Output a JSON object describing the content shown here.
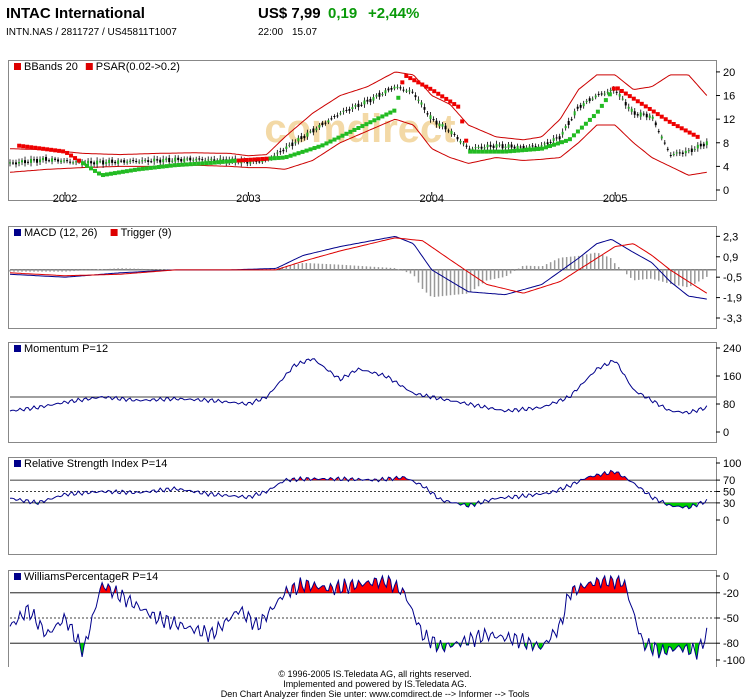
{
  "header": {
    "name": "INTAC International",
    "identifier": "INTN.NAS  /  2811727  /  US45811T1007",
    "price": "US$ 7,99",
    "change": "0,19",
    "change_pct": "+2,44%",
    "time": "22:00",
    "date": "15.07"
  },
  "footer": {
    "copyright": "© 1996-2005 IS.Teledata AG, all rights reserved.",
    "implemented": "Implemented and powered by IS.Teledata AG.",
    "analyzer": "Den Chart Analyzer finden Sie unter: www.comdirect.de --> Informer --> Tools"
  },
  "chart_data": [
    {
      "type": "line",
      "panel": "price",
      "legend": [
        "BBands 20",
        "PSAR(0.02->0.2)"
      ],
      "legend_colors": [
        "#dd0000",
        "#dd0000"
      ],
      "yticks": [
        0,
        4,
        8,
        12,
        16,
        20
      ],
      "ylim": [
        0,
        21
      ],
      "xticks": [
        "2002",
        "2003",
        "2004",
        "2005"
      ],
      "xtick_positions": [
        2002.0,
        2003.0,
        2004.0,
        2005.0
      ],
      "xlim": [
        2001.7,
        2005.55
      ],
      "price": {
        "x": [
          2001.7,
          2001.9,
          2002.1,
          2002.3,
          2002.5,
          2002.7,
          2002.9,
          2003.0,
          2003.1,
          2003.2,
          2003.35,
          2003.5,
          2003.65,
          2003.8,
          2003.9,
          2004.0,
          2004.1,
          2004.2,
          2004.35,
          2004.5,
          2004.6,
          2004.7,
          2004.8,
          2004.9,
          2005.0,
          2005.1,
          2005.2,
          2005.3,
          2005.4,
          2005.5
        ],
        "y": [
          4.5,
          5.2,
          4.6,
          4.8,
          5.0,
          5.2,
          5.0,
          4.8,
          5.0,
          7.0,
          10.0,
          13.0,
          15.0,
          17.5,
          16.5,
          12.0,
          10.0,
          7.0,
          7.5,
          7.2,
          7.5,
          9.0,
          14.0,
          16.0,
          17.0,
          13.0,
          12.5,
          6.0,
          6.5,
          7.99
        ]
      },
      "bb_upper": {
        "x": [
          2001.7,
          2001.9,
          2002.1,
          2002.3,
          2002.5,
          2002.7,
          2002.9,
          2003.0,
          2003.1,
          2003.2,
          2003.35,
          2003.5,
          2003.65,
          2003.8,
          2003.9,
          2004.0,
          2004.1,
          2004.2,
          2004.35,
          2004.5,
          2004.6,
          2004.7,
          2004.8,
          2004.9,
          2005.0,
          2005.1,
          2005.2,
          2005.3,
          2005.4,
          2005.5
        ],
        "y": [
          7.0,
          6.8,
          6.2,
          6.0,
          6.2,
          6.3,
          6.2,
          5.8,
          6.0,
          9.0,
          13.0,
          16.0,
          17.5,
          20.0,
          19.5,
          16.0,
          14.5,
          11.0,
          9.0,
          8.5,
          9.0,
          12.0,
          17.0,
          19.5,
          19.5,
          17.0,
          17.5,
          19.5,
          19.5,
          16.0
        ]
      },
      "bb_lower": {
        "x": [
          2001.7,
          2001.9,
          2002.1,
          2002.3,
          2002.5,
          2002.7,
          2002.9,
          2003.0,
          2003.1,
          2003.2,
          2003.35,
          2003.5,
          2003.65,
          2003.8,
          2003.9,
          2004.0,
          2004.1,
          2004.2,
          2004.35,
          2004.5,
          2004.6,
          2004.7,
          2004.8,
          2004.9,
          2005.0,
          2005.1,
          2005.2,
          2005.3,
          2005.4,
          2005.5
        ],
        "y": [
          3.0,
          3.5,
          3.8,
          4.0,
          4.0,
          4.2,
          4.0,
          3.8,
          3.8,
          3.5,
          5.0,
          8.0,
          10.0,
          12.0,
          11.0,
          7.0,
          5.5,
          4.5,
          5.5,
          5.0,
          5.2,
          5.5,
          8.0,
          11.0,
          11.0,
          8.0,
          5.5,
          4.0,
          2.5,
          3.0
        ]
      },
      "psar": {
        "x": [
          2001.75,
          2002.0,
          2002.2,
          2002.4,
          2002.6,
          2002.8,
          2002.95,
          2003.2,
          2003.4,
          2003.6,
          2003.8,
          2003.85,
          2004.0,
          2004.15,
          2004.2,
          2004.4,
          2004.6,
          2004.75,
          2004.9,
          2005.0,
          2005.1,
          2005.2,
          2005.3,
          2005.45
        ],
        "y": [
          7.5,
          6.5,
          2.5,
          3.5,
          4.2,
          4.6,
          5.0,
          5.5,
          7.5,
          10.5,
          13.5,
          19.5,
          17.0,
          14.0,
          6.5,
          6.5,
          7.0,
          8.5,
          13.0,
          17.5,
          15.5,
          13.5,
          11.5,
          9.0
        ]
      }
    },
    {
      "type": "line",
      "panel": "macd",
      "legend": [
        "MACD (12, 26)",
        "Trigger (9)"
      ],
      "legend_colors": [
        "#00008b",
        "#dd0000"
      ],
      "yticks": [
        2.3,
        0.9,
        -0.5,
        -1.9,
        -3.3
      ],
      "ylim": [
        -3.3,
        2.6
      ],
      "zero_line": 0,
      "macd": {
        "x": [
          2001.7,
          2002.0,
          2002.3,
          2002.6,
          2002.9,
          2003.15,
          2003.3,
          2003.5,
          2003.8,
          2003.9,
          2004.0,
          2004.2,
          2004.4,
          2004.6,
          2004.8,
          2004.9,
          2004.98,
          2005.1,
          2005.2,
          2005.3,
          2005.4,
          2005.5
        ],
        "y": [
          -0.3,
          -0.5,
          -0.2,
          0.0,
          0.0,
          0.1,
          1.0,
          1.6,
          2.3,
          1.8,
          0.0,
          -1.5,
          -1.7,
          -1.0,
          0.8,
          1.8,
          2.1,
          1.2,
          0.5,
          -0.8,
          -1.8,
          -2.0
        ]
      },
      "trigger": {
        "x": [
          2001.7,
          2002.0,
          2002.3,
          2002.6,
          2002.9,
          2003.15,
          2003.3,
          2003.5,
          2003.8,
          2003.95,
          2004.1,
          2004.3,
          2004.5,
          2004.7,
          2004.9,
          2005.0,
          2005.1,
          2005.2,
          2005.3,
          2005.4,
          2005.5
        ],
        "y": [
          -0.2,
          -0.4,
          -0.3,
          0.0,
          0.0,
          0.0,
          0.6,
          1.3,
          2.2,
          2.0,
          0.7,
          -1.0,
          -1.6,
          -0.8,
          0.8,
          1.6,
          1.8,
          1.0,
          0.0,
          -0.8,
          -1.6
        ]
      }
    },
    {
      "type": "line",
      "panel": "momentum",
      "legend": [
        "Momentum P=12"
      ],
      "legend_colors": [
        "#00008b"
      ],
      "yticks": [
        240,
        160,
        80,
        0
      ],
      "ylim": [
        0,
        240
      ],
      "ref_line": 100,
      "momentum": {
        "x": [
          2001.7,
          2001.85,
          2002.0,
          2002.2,
          2002.4,
          2002.6,
          2002.8,
          2003.0,
          2003.1,
          2003.25,
          2003.35,
          2003.5,
          2003.6,
          2003.75,
          2003.9,
          2004.0,
          2004.2,
          2004.4,
          2004.6,
          2004.75,
          2004.9,
          2005.0,
          2005.1,
          2005.2,
          2005.3,
          2005.4,
          2005.5
        ],
        "y": [
          60,
          70,
          85,
          100,
          90,
          95,
          90,
          80,
          100,
          190,
          210,
          150,
          180,
          160,
          110,
          100,
          80,
          60,
          70,
          100,
          180,
          205,
          120,
          90,
          60,
          55,
          70
        ]
      }
    },
    {
      "type": "line",
      "panel": "rsi",
      "legend": [
        "Relative Strength Index P=14"
      ],
      "legend_colors": [
        "#00008b"
      ],
      "yticks": [
        100,
        70,
        50,
        30,
        0
      ],
      "ylim": [
        0,
        100
      ],
      "ref_lines": [
        70,
        50,
        30
      ],
      "rsi": {
        "x": [
          2001.7,
          2001.85,
          2002.0,
          2002.2,
          2002.4,
          2002.6,
          2002.8,
          2003.0,
          2003.1,
          2003.2,
          2003.3,
          2003.5,
          2003.7,
          2003.85,
          2003.95,
          2004.05,
          2004.2,
          2004.35,
          2004.5,
          2004.65,
          2004.75,
          2004.85,
          2005.0,
          2005.1,
          2005.2,
          2005.3,
          2005.4,
          2005.5
        ],
        "y": [
          38,
          30,
          45,
          50,
          48,
          55,
          45,
          40,
          50,
          70,
          72,
          72,
          70,
          75,
          60,
          35,
          25,
          38,
          42,
          48,
          60,
          75,
          85,
          65,
          40,
          25,
          22,
          33
        ]
      }
    },
    {
      "type": "line",
      "panel": "williams",
      "legend": [
        "WilliamsPercentageR P=14"
      ],
      "legend_colors": [
        "#00008b"
      ],
      "yticks": [
        0,
        -20,
        -50,
        -80,
        -100
      ],
      "ylim": [
        -100,
        0
      ],
      "ref_lines": [
        -20,
        -50,
        -80
      ],
      "williams": {
        "x": [
          2001.7,
          2001.8,
          2001.9,
          2002.0,
          2002.1,
          2002.2,
          2002.35,
          2002.5,
          2002.65,
          2002.8,
          2002.95,
          2003.05,
          2003.2,
          2003.3,
          2003.45,
          2003.6,
          2003.75,
          2003.85,
          2003.95,
          2004.05,
          2004.15,
          2004.3,
          2004.45,
          2004.6,
          2004.7,
          2004.75,
          2004.85,
          2004.95,
          2005.05,
          2005.15,
          2005.25,
          2005.35,
          2005.45,
          2005.5
        ],
        "y": [
          -60,
          -40,
          -70,
          -50,
          -90,
          -10,
          -30,
          -50,
          -60,
          -70,
          -40,
          -60,
          -20,
          -10,
          -15,
          -10,
          -5,
          -20,
          -70,
          -85,
          -80,
          -70,
          -75,
          -85,
          -60,
          -20,
          -10,
          -5,
          -8,
          -80,
          -90,
          -85,
          -90,
          -70
        ]
      }
    }
  ],
  "colors": {
    "bb": "#cc0000",
    "psar_up": "#22bb22",
    "psar_down": "#ee0000",
    "macd": "#00008b",
    "trigger": "#dd0000",
    "histogram": "#999999",
    "line": "#00008b",
    "fill_high": "#ff0000",
    "fill_low": "#00cc00",
    "watermark": "#f3d9a6"
  },
  "watermark": "comdirect"
}
